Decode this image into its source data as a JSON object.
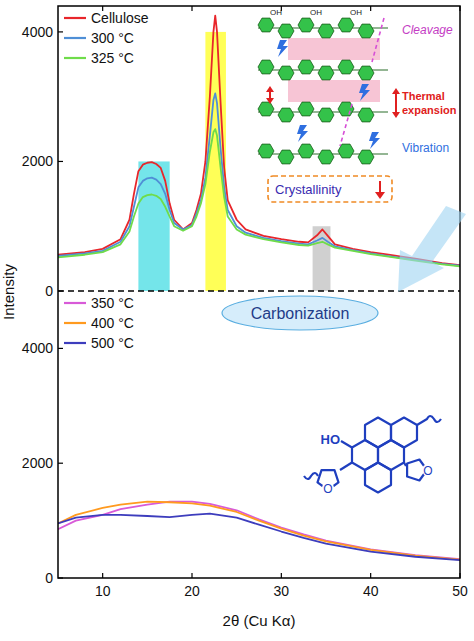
{
  "chart_data": [
    {
      "type": "line",
      "y_label": "Intensity",
      "xlim": [
        5,
        50
      ],
      "xticks": [
        10,
        20,
        30,
        40,
        50
      ],
      "ylim": [
        0,
        4400
      ],
      "yticks": [
        0,
        2000,
        4000
      ],
      "tick_labels": "y",
      "legend": "upper left",
      "x": [
        5,
        8,
        10,
        12,
        13,
        13.5,
        14,
        14.5,
        15,
        15.5,
        16,
        16.5,
        17,
        17.5,
        18,
        19,
        20,
        20.5,
        21,
        21.5,
        22,
        22.4,
        22.6,
        22.8,
        23.2,
        23.6,
        24,
        25,
        26,
        28,
        30,
        32,
        33,
        34,
        34.6,
        35.2,
        36,
        38,
        40,
        42,
        45,
        48,
        50
      ],
      "series": [
        {
          "name": "Cellulose",
          "color": "#e8262b",
          "values": [
            560,
            600,
            650,
            800,
            1100,
            1500,
            1850,
            1950,
            1980,
            1990,
            1960,
            1900,
            1700,
            1350,
            1100,
            950,
            1050,
            1250,
            1500,
            2000,
            3000,
            4000,
            4250,
            4000,
            2900,
            1900,
            1400,
            1100,
            950,
            850,
            800,
            760,
            750,
            860,
            950,
            850,
            720,
            650,
            600,
            560,
            500,
            430,
            400
          ]
        },
        {
          "name": "300 °C",
          "color": "#4f8fd6",
          "values": [
            540,
            580,
            620,
            760,
            1000,
            1300,
            1600,
            1700,
            1740,
            1750,
            1720,
            1650,
            1500,
            1250,
            1050,
            950,
            1020,
            1200,
            1400,
            1750,
            2400,
            2950,
            3050,
            2900,
            2200,
            1600,
            1250,
            1000,
            900,
            820,
            770,
            730,
            720,
            780,
            820,
            760,
            690,
            630,
            580,
            540,
            480,
            420,
            390
          ]
        },
        {
          "name": "325 °C",
          "color": "#6fdc4a",
          "values": [
            520,
            560,
            600,
            720,
            920,
            1150,
            1350,
            1450,
            1480,
            1490,
            1470,
            1420,
            1300,
            1150,
            1000,
            930,
            1000,
            1150,
            1350,
            1650,
            2150,
            2450,
            2500,
            2400,
            1900,
            1450,
            1150,
            950,
            870,
            800,
            750,
            710,
            700,
            740,
            760,
            720,
            670,
            620,
            570,
            530,
            470,
            410,
            380
          ]
        }
      ],
      "highlights": [
        {
          "xmin": 14,
          "xmax": 17.5,
          "ymax": 2000,
          "color": "#5ce1e6"
        },
        {
          "xmin": 21.5,
          "xmax": 23.8,
          "ymax": 4000,
          "color": "#ffff3a"
        },
        {
          "xmin": 33.5,
          "xmax": 35.5,
          "ymax": 1000,
          "color": "#c8c8c8"
        }
      ],
      "annotations": {
        "cleavage": "Cleavage",
        "thermal_expansion": "Thermal expansion",
        "vibration": "Vibration",
        "crystallinity": "Crystallinity",
        "hydroxyl": "OH"
      }
    },
    {
      "type": "line",
      "x_label": "2θ (Cu Kα)",
      "xlim": [
        5,
        50
      ],
      "xticks": [
        10,
        20,
        30,
        40,
        50
      ],
      "ylim": [
        0,
        5000
      ],
      "yticks": [
        0,
        2000,
        4000
      ],
      "tick_labels": true,
      "legend": "upper left",
      "x": [
        5,
        7,
        10,
        12,
        15,
        17.5,
        20,
        22,
        25,
        27.5,
        30,
        32.5,
        35,
        40,
        45,
        50
      ],
      "series": [
        {
          "name": "350 °C",
          "color": "#d85ad8",
          "values": [
            850,
            1000,
            1100,
            1200,
            1280,
            1330,
            1330,
            1290,
            1180,
            1020,
            880,
            760,
            650,
            500,
            400,
            330
          ]
        },
        {
          "name": "400 °C",
          "color": "#ff9a1f",
          "values": [
            950,
            1100,
            1220,
            1280,
            1330,
            1320,
            1300,
            1260,
            1150,
            1000,
            860,
            740,
            640,
            490,
            390,
            320
          ]
        },
        {
          "name": "500 °C",
          "color": "#3d3dbd",
          "values": [
            950,
            1050,
            1100,
            1100,
            1080,
            1060,
            1100,
            1120,
            1050,
            930,
            810,
            700,
            600,
            460,
            370,
            310
          ]
        }
      ],
      "annotations": {
        "carbonization": "Carbonization",
        "molecule": [
          "HO",
          "O",
          "O"
        ]
      }
    }
  ]
}
